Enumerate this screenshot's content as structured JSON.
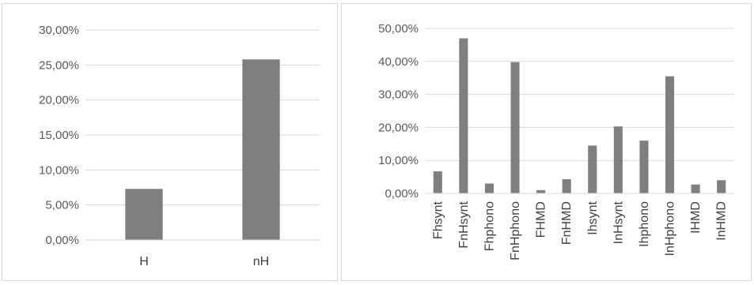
{
  "chart_data": [
    {
      "type": "bar",
      "title": "",
      "xlabel": "",
      "ylabel": "",
      "categories": [
        "H",
        "nH"
      ],
      "values": [
        7.3,
        25.8
      ],
      "ylim": [
        0,
        30
      ],
      "yticks": [
        0,
        5,
        10,
        15,
        20,
        25,
        30
      ],
      "ytick_labels": [
        "0,00%",
        "5,00%",
        "10,00%",
        "15,00%",
        "20,00%",
        "25,00%",
        "30,00%"
      ],
      "grid": true,
      "legend": "none",
      "bar_color": "#7f7f7f"
    },
    {
      "type": "bar",
      "title": "",
      "xlabel": "",
      "ylabel": "",
      "categories": [
        "Fhsynt",
        "FnHsynt",
        "Fhphono",
        "FnHphono",
        "FHMD",
        "FnHMD",
        "Ihsynt",
        "InHsynt",
        "Ihphono",
        "InHphono",
        "IHMD",
        "InHMD"
      ],
      "values": [
        6.7,
        47.0,
        3.0,
        39.8,
        1.0,
        4.3,
        14.5,
        20.3,
        16.0,
        35.5,
        2.7,
        4.0
      ],
      "ylim": [
        0,
        50
      ],
      "yticks": [
        0,
        10,
        20,
        30,
        40,
        50
      ],
      "ytick_labels": [
        "0,00%",
        "10,00%",
        "20,00%",
        "30,00%",
        "40,00%",
        "50,00%"
      ],
      "grid": true,
      "legend": "none",
      "bar_color": "#7f7f7f"
    }
  ]
}
